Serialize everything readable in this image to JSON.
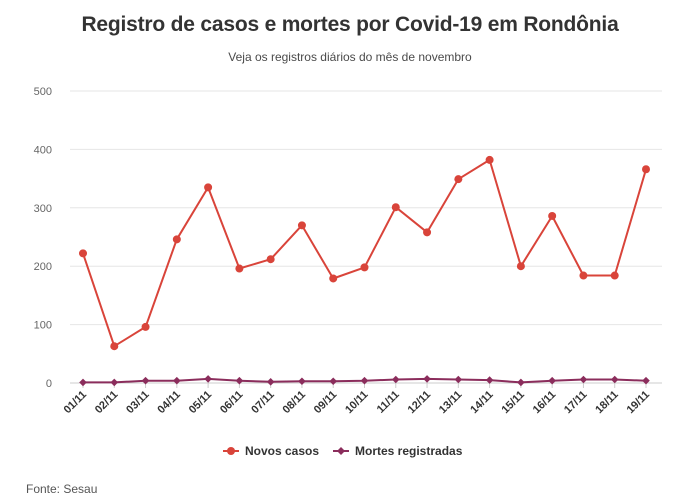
{
  "title": "Registro de casos e mortes por Covid-19 em Rondônia",
  "subtitle": "Veja os registros diários do mês de novembro",
  "source": "Fonte: Sesau",
  "colors": {
    "cases": "#d9443a",
    "deaths": "#8b2d5c",
    "grid": "#e6e6e6",
    "axis": "#cccccc"
  },
  "chart_data": {
    "type": "line",
    "title": "Registro de casos e mortes por Covid-19 em Rondônia",
    "subtitle": "Veja os registros diários do mês de novembro",
    "categories": [
      "01/11",
      "02/11",
      "03/11",
      "04/11",
      "05/11",
      "06/11",
      "07/11",
      "08/11",
      "09/11",
      "10/11",
      "11/11",
      "12/11",
      "13/11",
      "14/11",
      "15/11",
      "16/11",
      "17/11",
      "18/11",
      "19/11"
    ],
    "yticks": [
      0,
      100,
      200,
      300,
      400,
      500
    ],
    "ylim": [
      0,
      500
    ],
    "grid": true,
    "legend_position": "bottom-center",
    "series": [
      {
        "name": "Novos casos",
        "marker": "circle",
        "values": [
          222,
          63,
          96,
          246,
          335,
          196,
          212,
          270,
          179,
          198,
          301,
          258,
          349,
          382,
          200,
          286,
          184,
          184,
          366
        ]
      },
      {
        "name": "Mortes registradas",
        "marker": "diamond",
        "values": [
          1,
          1,
          4,
          4,
          7,
          4,
          2,
          3,
          3,
          4,
          6,
          7,
          6,
          5,
          1,
          4,
          6,
          6,
          4
        ]
      }
    ]
  }
}
